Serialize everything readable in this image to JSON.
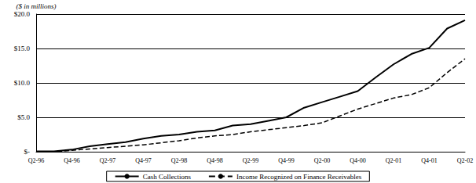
{
  "chart_data": {
    "type": "line",
    "y_label": "($ in millions)",
    "categories": [
      "Q2-96",
      null,
      "Q4-96",
      null,
      "Q2-97",
      null,
      "Q4-97",
      null,
      "Q2-98",
      null,
      "Q4-98",
      null,
      "Q2-99",
      null,
      "Q4-99",
      null,
      "Q2-00",
      null,
      "Q4-00",
      null,
      "Q2-01",
      null,
      "Q4-01",
      null,
      "Q2-02"
    ],
    "series": [
      {
        "name": "Cash Collections",
        "color": "#000000",
        "line_style": "solid",
        "values": [
          0.05,
          0.05,
          0.3,
          0.8,
          1.1,
          1.4,
          1.9,
          2.3,
          2.5,
          2.9,
          3.1,
          3.8,
          4.0,
          4.5,
          5.0,
          6.4,
          7.2,
          8.0,
          8.8,
          10.8,
          12.7,
          14.2,
          15.1,
          17.9,
          19.1
        ]
      },
      {
        "name": "Income Recognized on Finance Receivables",
        "color": "#000000",
        "line_style": "dashed",
        "values": [
          0,
          0,
          0.2,
          0.4,
          0.6,
          0.8,
          1.0,
          1.3,
          1.6,
          2.0,
          2.3,
          2.5,
          2.9,
          3.2,
          3.5,
          3.8,
          4.2,
          5.2,
          6.2,
          7.0,
          7.8,
          8.3,
          9.3,
          11.5,
          13.5
        ]
      }
    ],
    "ylim": [
      0,
      20
    ],
    "yticks": [
      {
        "value": 0,
        "label": "$-"
      },
      {
        "value": 5,
        "label": "$5.0"
      },
      {
        "value": 10,
        "label": "$10.0"
      },
      {
        "value": 15,
        "label": "$15.0"
      },
      {
        "value": 20,
        "label": "$20.0"
      }
    ],
    "grid": true,
    "legend": "bottom"
  }
}
